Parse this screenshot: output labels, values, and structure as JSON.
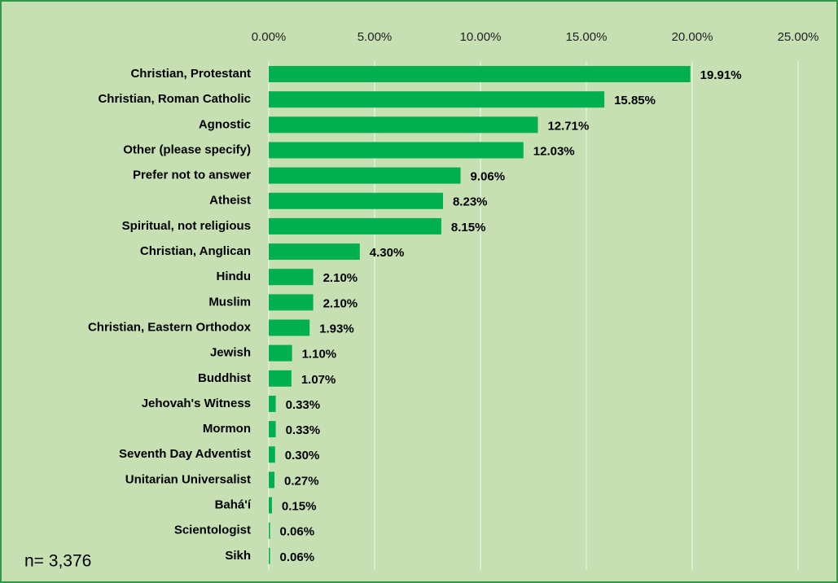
{
  "chart_data": {
    "type": "bar",
    "orientation": "horizontal",
    "categories": [
      "Christian, Protestant",
      "Christian, Roman Catholic",
      "Agnostic",
      "Other (please specify)",
      "Prefer not to answer",
      "Atheist",
      "Spiritual, not religious",
      "Christian, Anglican",
      "Hindu",
      "Muslim",
      "Christian, Eastern Orthodox",
      "Jewish",
      "Buddhist",
      "Jehovah's Witness",
      "Mormon",
      "Seventh Day Adventist",
      "Unitarian Universalist",
      "Bahá'í",
      "Scientologist",
      "Sikh"
    ],
    "values": [
      19.91,
      15.85,
      12.71,
      12.03,
      9.06,
      8.23,
      8.15,
      4.3,
      2.1,
      2.1,
      1.93,
      1.1,
      1.07,
      0.33,
      0.33,
      0.3,
      0.27,
      0.15,
      0.06,
      0.06
    ],
    "value_labels": [
      "19.91%",
      "15.85%",
      "12.71%",
      "12.03%",
      "9.06%",
      "8.23%",
      "8.15%",
      "4.30%",
      "2.10%",
      "2.10%",
      "1.93%",
      "1.10%",
      "1.07%",
      "0.33%",
      "0.33%",
      "0.30%",
      "0.27%",
      "0.15%",
      "0.06%",
      "0.06%"
    ],
    "color": "#00b050",
    "xlim": [
      0,
      25
    ],
    "xticks": [
      {
        "value": 0,
        "label": "0.00%"
      },
      {
        "value": 5,
        "label": "5.00%"
      },
      {
        "value": 10,
        "label": "10.00%"
      },
      {
        "value": 15,
        "label": "15.00%"
      },
      {
        "value": 20,
        "label": "20.00%"
      },
      {
        "value": 25,
        "label": "25.00%"
      }
    ],
    "grid": true,
    "annotation": "n= 3,376"
  }
}
